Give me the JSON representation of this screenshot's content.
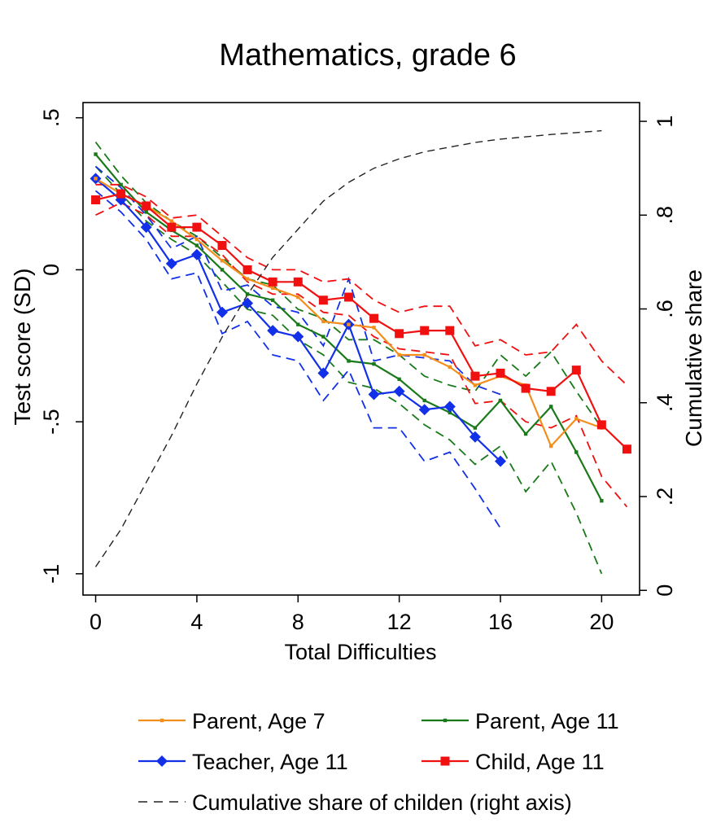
{
  "chart_data": {
    "type": "line",
    "title": "Mathematics, grade 6",
    "xlabel": "Total Difficulties",
    "ylabel": "Test score (SD)",
    "y2label": "Cumulative share",
    "xlim": [
      -0.5,
      21.5
    ],
    "ylim": [
      -1.07,
      0.55
    ],
    "y2lim": [
      -0.01,
      1.04
    ],
    "xticks": [
      0,
      4,
      8,
      12,
      16,
      20
    ],
    "yticks": [
      0.5,
      0,
      -0.5,
      -1
    ],
    "ytick_labels": [
      ".5",
      "0",
      "-.5",
      "-1"
    ],
    "y2ticks": [
      1,
      0.8,
      0.6,
      0.4,
      0.2,
      0
    ],
    "y2tick_labels": [
      "1",
      ".8",
      ".6",
      ".4",
      ".2",
      "0"
    ],
    "grid": false,
    "legend_position": "bottom",
    "series": [
      {
        "name": "Parent, Age 7",
        "color": "#f28e1c",
        "marker": "small-square",
        "axis": "left",
        "x": [
          0,
          1,
          2,
          3,
          4,
          5,
          6,
          7,
          8,
          9,
          10,
          11,
          12,
          13,
          14,
          15,
          16,
          17,
          18,
          19,
          20
        ],
        "y": [
          0.3,
          0.25,
          0.21,
          0.16,
          0.1,
          0.03,
          -0.03,
          -0.06,
          -0.09,
          -0.17,
          -0.18,
          -0.19,
          -0.28,
          -0.28,
          -0.32,
          -0.38,
          -0.35,
          -0.38,
          -0.58,
          -0.49,
          -0.52
        ],
        "ci_low": null,
        "ci_high": null
      },
      {
        "name": "Parent, Age 11",
        "color": "#1a7a1a",
        "marker": "small-square",
        "axis": "left",
        "x": [
          0,
          1,
          2,
          3,
          4,
          5,
          6,
          7,
          8,
          9,
          10,
          11,
          12,
          13,
          14,
          15,
          16,
          17,
          18,
          19,
          20
        ],
        "y": [
          0.38,
          0.28,
          0.19,
          0.13,
          0.08,
          0.0,
          -0.08,
          -0.1,
          -0.18,
          -0.22,
          -0.3,
          -0.31,
          -0.36,
          -0.43,
          -0.47,
          -0.52,
          -0.43,
          -0.54,
          -0.45,
          -0.6,
          -0.76
        ],
        "ci_low": [
          0.34,
          0.25,
          0.16,
          0.1,
          0.05,
          -0.04,
          -0.13,
          -0.15,
          -0.23,
          -0.28,
          -0.37,
          -0.39,
          -0.44,
          -0.51,
          -0.56,
          -0.64,
          -0.58,
          -0.73,
          -0.63,
          -0.8,
          -1.0
        ],
        "ci_high": [
          0.42,
          0.31,
          0.22,
          0.16,
          0.11,
          0.04,
          -0.03,
          -0.05,
          -0.13,
          -0.16,
          -0.23,
          -0.23,
          -0.28,
          -0.35,
          -0.38,
          -0.4,
          -0.28,
          -0.35,
          -0.27,
          -0.4,
          -0.52
        ]
      },
      {
        "name": "Teacher, Age 11",
        "color": "#1230e8",
        "marker": "diamond",
        "axis": "left",
        "x": [
          0,
          1,
          2,
          3,
          4,
          5,
          6,
          7,
          8,
          9,
          10,
          11,
          12,
          13,
          14,
          15,
          16
        ],
        "y": [
          0.3,
          0.23,
          0.14,
          0.02,
          0.05,
          -0.14,
          -0.11,
          -0.2,
          -0.22,
          -0.34,
          -0.18,
          -0.41,
          -0.4,
          -0.46,
          -0.45,
          -0.55,
          -0.63
        ],
        "ci_low": [
          0.26,
          0.19,
          0.1,
          -0.03,
          -0.01,
          -0.21,
          -0.17,
          -0.28,
          -0.3,
          -0.43,
          -0.33,
          -0.52,
          -0.52,
          -0.63,
          -0.6,
          -0.72,
          -0.85
        ],
        "ci_high": [
          0.34,
          0.27,
          0.18,
          0.07,
          0.11,
          -0.07,
          -0.05,
          -0.12,
          -0.14,
          -0.25,
          -0.03,
          -0.3,
          -0.28,
          -0.29,
          -0.3,
          -0.38,
          -0.41
        ]
      },
      {
        "name": "Child, Age 11",
        "color": "#f01010",
        "marker": "square",
        "axis": "left",
        "x": [
          0,
          1,
          2,
          3,
          4,
          5,
          6,
          7,
          8,
          9,
          10,
          11,
          12,
          13,
          14,
          15,
          16,
          17,
          18,
          19,
          20,
          21
        ],
        "y": [
          0.23,
          0.25,
          0.21,
          0.14,
          0.14,
          0.08,
          0.0,
          -0.04,
          -0.04,
          -0.1,
          -0.09,
          -0.16,
          -0.21,
          -0.2,
          -0.2,
          -0.35,
          -0.34,
          -0.39,
          -0.4,
          -0.33,
          -0.51,
          -0.59
        ],
        "ci_low": [
          0.18,
          0.22,
          0.18,
          0.11,
          0.11,
          0.05,
          -0.04,
          -0.08,
          -0.08,
          -0.14,
          -0.15,
          -0.22,
          -0.26,
          -0.27,
          -0.28,
          -0.44,
          -0.43,
          -0.5,
          -0.52,
          -0.48,
          -0.68,
          -0.78
        ],
        "ci_high": [
          0.28,
          0.28,
          0.24,
          0.17,
          0.18,
          0.11,
          0.04,
          0.0,
          0.0,
          -0.04,
          -0.03,
          -0.1,
          -0.14,
          -0.12,
          -0.12,
          -0.25,
          -0.23,
          -0.28,
          -0.27,
          -0.18,
          -0.3,
          -0.38
        ]
      },
      {
        "name": "Cumulative share of childen (right axis)",
        "color": "#222222",
        "marker": "none",
        "dash": "dashed",
        "axis": "right",
        "x": [
          0,
          1,
          2,
          3,
          4,
          5,
          6,
          7,
          8,
          9,
          10,
          11,
          12,
          13,
          14,
          15,
          16,
          17,
          18,
          19,
          20
        ],
        "y": [
          0.05,
          0.13,
          0.23,
          0.33,
          0.44,
          0.54,
          0.63,
          0.71,
          0.77,
          0.83,
          0.87,
          0.9,
          0.92,
          0.935,
          0.945,
          0.955,
          0.962,
          0.967,
          0.972,
          0.976,
          0.98
        ],
        "ci_low": null,
        "ci_high": null
      }
    ],
    "legend": {
      "entries": [
        "Parent, Age 7",
        "Parent, Age 11",
        "Teacher, Age 11",
        "Child, Age 11",
        "Cumulative share of childen (right axis)"
      ]
    }
  }
}
